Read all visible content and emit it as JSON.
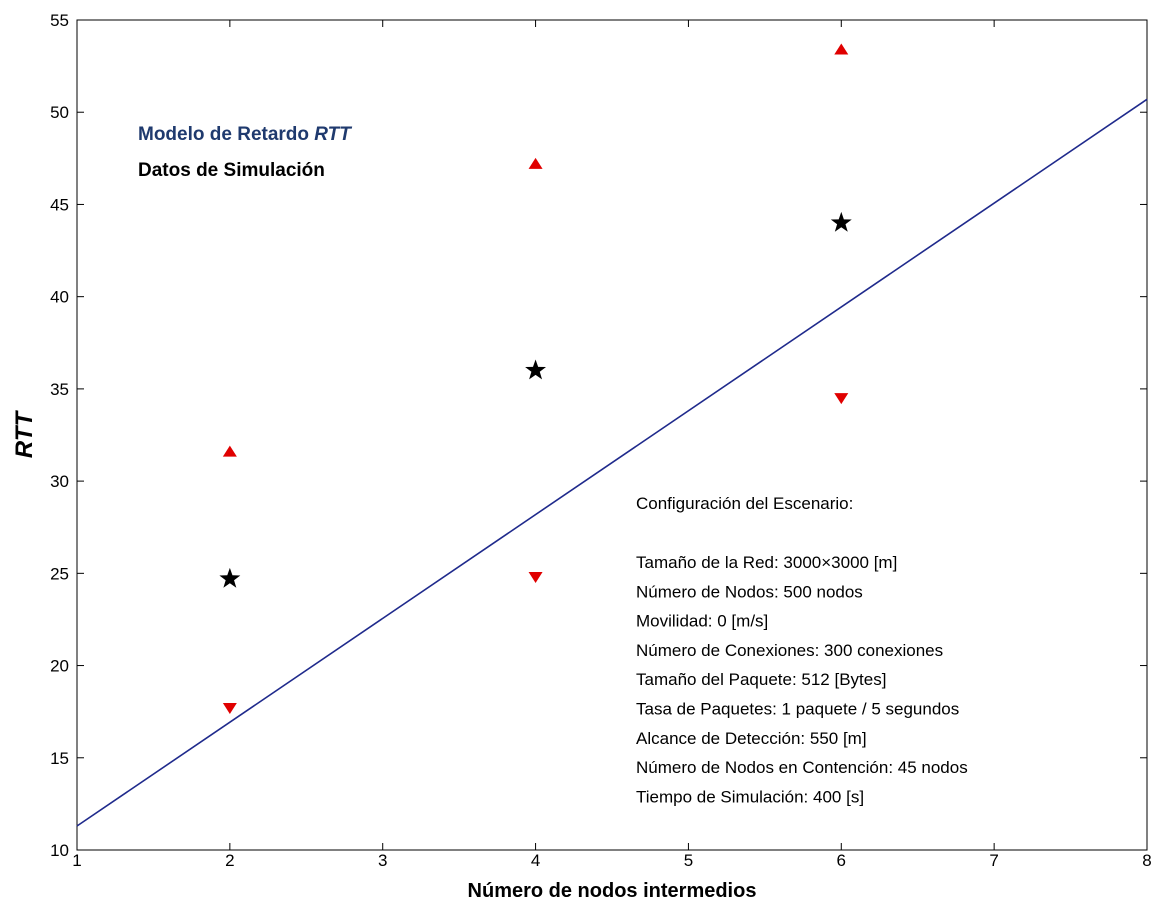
{
  "chart_data": {
    "type": "scatter",
    "xlabel": "Número de nodos intermedios",
    "ylabel": "RTT",
    "xlim": [
      1,
      8
    ],
    "ylim": [
      10,
      55
    ],
    "xticks": [
      1,
      2,
      3,
      4,
      5,
      6,
      7,
      8
    ],
    "yticks": [
      10,
      15,
      20,
      25,
      30,
      35,
      40,
      45,
      50,
      55
    ],
    "grid": false,
    "legend_placement": "top-left",
    "legend": {
      "model_prefix": "Modelo de Retardo ",
      "model_italic": "RTT",
      "simulation": "Datos de Simulación"
    },
    "colors": {
      "model": "#1f2a8c",
      "legend_model": "#1f3a6e",
      "simulation": "#000000",
      "bounds": "#e00000"
    },
    "series": [
      {
        "kind": "line",
        "x": [
          1,
          8
        ],
        "y": [
          11.3,
          50.7
        ]
      },
      {
        "kind": "star",
        "x": [
          2,
          4,
          6
        ],
        "y": [
          24.7,
          36.0,
          44.0
        ]
      },
      {
        "kind": "triangle-up",
        "x": [
          2,
          4,
          6
        ],
        "y": [
          31.6,
          47.2,
          53.4
        ]
      },
      {
        "kind": "triangle-down",
        "x": [
          2,
          4,
          6
        ],
        "y": [
          17.7,
          24.8,
          34.5
        ]
      }
    ],
    "annotation": {
      "title": "Configuración del Escenario:",
      "lines": [
        "Tamaño de la Red: 3000×3000 [m]",
        "Número de Nodos: 500 nodos",
        "Movilidad: 0 [m/s]",
        "Número de Conexiones: 300 conexiones",
        "Tamaño del Paquete: 512 [Bytes]",
        "Tasa de Paquetes: 1 paquete / 5 segundos",
        "Alcance de Detección: 550 [m]",
        "Número de Nodos en Contención: 45 nodos",
        "Tiempo de Simulación: 400 [s]"
      ]
    }
  }
}
